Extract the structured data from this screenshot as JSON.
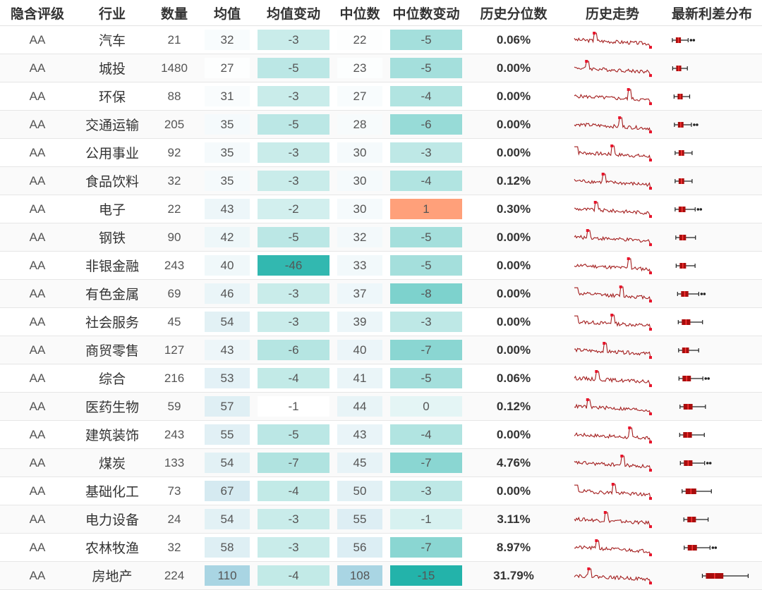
{
  "headers": [
    "隐含评级",
    "行业",
    "数量",
    "均值",
    "均值变动",
    "中位数",
    "中位数变动",
    "历史分位数",
    "历史走势",
    "最新利差分布"
  ],
  "colors": {
    "mean_scale": [
      "#ffffff",
      "#a9d5e3"
    ],
    "change_scale_neg": [
      "#f5fbfb",
      "#23b3aa"
    ],
    "change_pos": "#ffa07a",
    "trend_line": "#a31d1d",
    "trend_marker": "#e8132a",
    "box_fill": "#a80d0d",
    "box_median": "#ff3a3a",
    "whisker": "#222222"
  },
  "rows": [
    {
      "rating": "AA",
      "industry": "汽车",
      "count": "21",
      "mean": "32",
      "mean_chg": "-3",
      "median": "22",
      "median_chg": "-5",
      "pct": "0.06%"
    },
    {
      "rating": "AA",
      "industry": "城投",
      "count": "1480",
      "mean": "27",
      "mean_chg": "-5",
      "median": "23",
      "median_chg": "-5",
      "pct": "0.00%"
    },
    {
      "rating": "AA",
      "industry": "环保",
      "count": "88",
      "mean": "31",
      "mean_chg": "-3",
      "median": "27",
      "median_chg": "-4",
      "pct": "0.00%"
    },
    {
      "rating": "AA",
      "industry": "交通运输",
      "count": "205",
      "mean": "35",
      "mean_chg": "-5",
      "median": "28",
      "median_chg": "-6",
      "pct": "0.00%"
    },
    {
      "rating": "AA",
      "industry": "公用事业",
      "count": "92",
      "mean": "35",
      "mean_chg": "-3",
      "median": "30",
      "median_chg": "-3",
      "pct": "0.00%"
    },
    {
      "rating": "AA",
      "industry": "食品饮料",
      "count": "32",
      "mean": "35",
      "mean_chg": "-3",
      "median": "30",
      "median_chg": "-4",
      "pct": "0.12%"
    },
    {
      "rating": "AA",
      "industry": "电子",
      "count": "22",
      "mean": "43",
      "mean_chg": "-2",
      "median": "30",
      "median_chg": "1",
      "pct": "0.30%"
    },
    {
      "rating": "AA",
      "industry": "钢铁",
      "count": "90",
      "mean": "42",
      "mean_chg": "-5",
      "median": "32",
      "median_chg": "-5",
      "pct": "0.00%"
    },
    {
      "rating": "AA",
      "industry": "非银金融",
      "count": "243",
      "mean": "40",
      "mean_chg": "-46",
      "median": "33",
      "median_chg": "-5",
      "pct": "0.00%"
    },
    {
      "rating": "AA",
      "industry": "有色金属",
      "count": "69",
      "mean": "46",
      "mean_chg": "-3",
      "median": "37",
      "median_chg": "-8",
      "pct": "0.00%"
    },
    {
      "rating": "AA",
      "industry": "社会服务",
      "count": "45",
      "mean": "54",
      "mean_chg": "-3",
      "median": "39",
      "median_chg": "-3",
      "pct": "0.00%"
    },
    {
      "rating": "AA",
      "industry": "商贸零售",
      "count": "127",
      "mean": "43",
      "mean_chg": "-6",
      "median": "40",
      "median_chg": "-7",
      "pct": "0.00%"
    },
    {
      "rating": "AA",
      "industry": "综合",
      "count": "216",
      "mean": "53",
      "mean_chg": "-4",
      "median": "41",
      "median_chg": "-5",
      "pct": "0.06%"
    },
    {
      "rating": "AA",
      "industry": "医药生物",
      "count": "59",
      "mean": "57",
      "mean_chg": "-1",
      "median": "44",
      "median_chg": "0",
      "pct": "0.12%"
    },
    {
      "rating": "AA",
      "industry": "建筑装饰",
      "count": "243",
      "mean": "55",
      "mean_chg": "-5",
      "median": "43",
      "median_chg": "-4",
      "pct": "0.00%"
    },
    {
      "rating": "AA",
      "industry": "煤炭",
      "count": "133",
      "mean": "54",
      "mean_chg": "-7",
      "median": "45",
      "median_chg": "-7",
      "pct": "4.76%"
    },
    {
      "rating": "AA",
      "industry": "基础化工",
      "count": "73",
      "mean": "67",
      "mean_chg": "-4",
      "median": "50",
      "median_chg": "-3",
      "pct": "0.00%"
    },
    {
      "rating": "AA",
      "industry": "电力设备",
      "count": "24",
      "mean": "54",
      "mean_chg": "-3",
      "median": "55",
      "median_chg": "-1",
      "pct": "3.11%"
    },
    {
      "rating": "AA",
      "industry": "农林牧渔",
      "count": "32",
      "mean": "58",
      "mean_chg": "-3",
      "median": "56",
      "median_chg": "-7",
      "pct": "8.97%"
    },
    {
      "rating": "AA",
      "industry": "房地产",
      "count": "224",
      "mean": "110",
      "mean_chg": "-4",
      "median": "108",
      "median_chg": "-15",
      "pct": "31.79%"
    }
  ]
}
